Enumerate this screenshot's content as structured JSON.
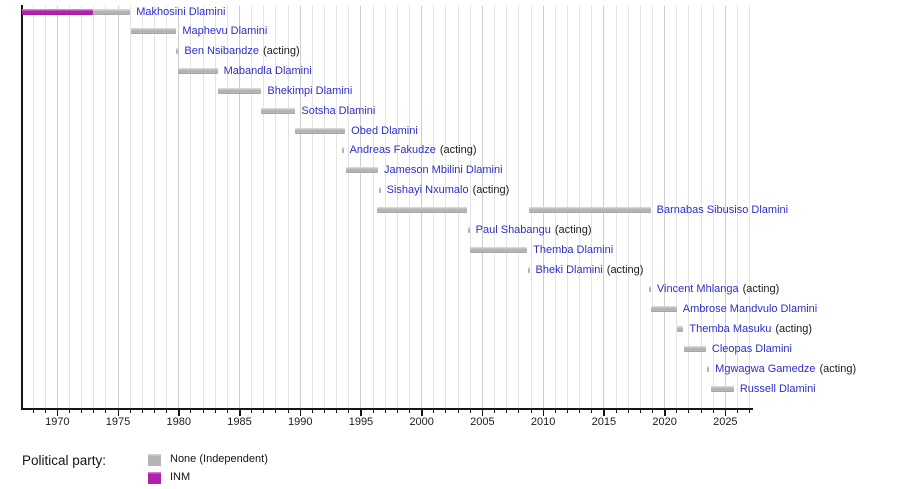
{
  "chart_data": {
    "type": "bar",
    "subtype": "timeline",
    "title": "",
    "x_axis": {
      "min": 1967,
      "max": 2027.3,
      "tick_years": [
        1970,
        1975,
        1980,
        1985,
        1990,
        1995,
        2000,
        2005,
        2010,
        2015,
        2020,
        2025
      ],
      "minor_tick_interval": 1,
      "grid": true
    },
    "legend": {
      "title": "Political party:",
      "entries": [
        {
          "id": "None",
          "label": "None (Independent)",
          "color": "#b4b4b4"
        },
        {
          "id": "INM",
          "label": "INM",
          "color": "#b11fad"
        }
      ]
    },
    "rows": [
      {
        "label": "Makhosini Dlamini",
        "suffix": "",
        "segments": [
          {
            "start": 1967.1,
            "end": 1972.9,
            "party": "INM"
          },
          {
            "start": 1972.9,
            "end": 1976.0,
            "party": "None"
          }
        ]
      },
      {
        "label": "Maphevu Dlamini",
        "suffix": "",
        "segments": [
          {
            "start": 1976.1,
            "end": 1979.8,
            "party": "None"
          }
        ]
      },
      {
        "label": "Ben Nsibandze",
        "suffix": "(acting)",
        "segments": [
          {
            "start": 1979.8,
            "end": 1979.97,
            "party": "None"
          }
        ]
      },
      {
        "label": "Mabandla Dlamini",
        "suffix": "",
        "segments": [
          {
            "start": 1979.97,
            "end": 1983.2,
            "party": "None"
          }
        ]
      },
      {
        "label": "Bhekimpi Dlamini",
        "suffix": "",
        "segments": [
          {
            "start": 1983.2,
            "end": 1986.8,
            "party": "None"
          }
        ]
      },
      {
        "label": "Sotsha Dlamini",
        "suffix": "",
        "segments": [
          {
            "start": 1986.8,
            "end": 1989.6,
            "party": "None"
          }
        ]
      },
      {
        "label": "Obed Dlamini",
        "suffix": "",
        "segments": [
          {
            "start": 1989.6,
            "end": 1993.7,
            "party": "None"
          }
        ]
      },
      {
        "label": "Andreas Fakudze",
        "suffix": "(acting)",
        "segments": [
          {
            "start": 1993.4,
            "end": 1993.57,
            "party": "None"
          }
        ]
      },
      {
        "label": "Jameson Mbilini Dlamini",
        "suffix": "",
        "segments": [
          {
            "start": 1993.75,
            "end": 1996.4,
            "party": "None"
          }
        ]
      },
      {
        "label": "Sishayi Nxumalo",
        "suffix": "(acting)",
        "segments": [
          {
            "start": 1996.45,
            "end": 1996.62,
            "party": "None"
          }
        ]
      },
      {
        "label": "Barnabas Sibusiso Dlamini",
        "suffix": "",
        "segments": [
          {
            "start": 1996.35,
            "end": 2003.72,
            "party": "None"
          },
          {
            "start": 2008.8,
            "end": 2018.85,
            "party": "None"
          }
        ]
      },
      {
        "label": "Paul Shabangu",
        "suffix": "(acting)",
        "segments": [
          {
            "start": 2003.78,
            "end": 2003.95,
            "party": "None"
          }
        ]
      },
      {
        "label": "Themba Dlamini",
        "suffix": "",
        "segments": [
          {
            "start": 2003.95,
            "end": 2008.68,
            "party": "None"
          }
        ]
      },
      {
        "label": "Bheki Dlamini",
        "suffix": "(acting)",
        "segments": [
          {
            "start": 2008.72,
            "end": 2008.88,
            "party": "None"
          }
        ]
      },
      {
        "label": "Vincent Mhlanga",
        "suffix": "(acting)",
        "segments": [
          {
            "start": 2018.7,
            "end": 2018.87,
            "party": "None"
          }
        ]
      },
      {
        "label": "Ambrose Mandvulo Dlamini",
        "suffix": "",
        "segments": [
          {
            "start": 2018.9,
            "end": 2021.0,
            "party": "None"
          }
        ]
      },
      {
        "label": "Themba Masuku",
        "suffix": "(acting)",
        "segments": [
          {
            "start": 2021.05,
            "end": 2021.55,
            "party": "None"
          }
        ]
      },
      {
        "label": "Cleopas Dlamini",
        "suffix": "",
        "segments": [
          {
            "start": 2021.6,
            "end": 2023.4,
            "party": "None"
          }
        ]
      },
      {
        "label": "Mgwagwa Gamedze",
        "suffix": "(acting)",
        "segments": [
          {
            "start": 2023.5,
            "end": 2023.67,
            "party": "None"
          }
        ]
      },
      {
        "label": "Russell Dlamini",
        "suffix": "",
        "segments": [
          {
            "start": 2023.85,
            "end": 2025.7,
            "party": "None"
          }
        ]
      }
    ]
  },
  "colors": {
    "link_label": "#2d2dc9",
    "axis": "#161616",
    "gridline_minor": "#e4e4e4",
    "gridline_major": "#cecece"
  }
}
